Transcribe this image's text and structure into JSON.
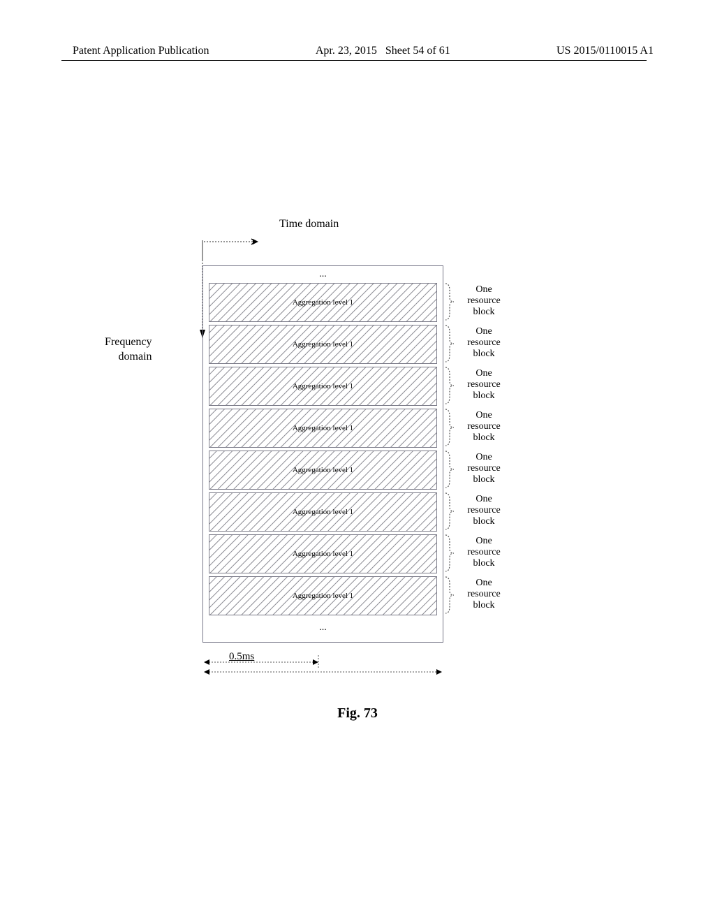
{
  "header": {
    "left": "Patent Application Publication",
    "date": "Apr. 23, 2015",
    "sheet": "Sheet 54 of 61",
    "pubno": "US 2015/0110015 A1"
  },
  "axes": {
    "time_label": "Time domain",
    "freq_label_1": "Frequency",
    "freq_label_2": "domain"
  },
  "diagram": {
    "ellipsis": "...",
    "block_label": "Aggregation level 1",
    "block_count": 8,
    "hatch_color": "#8a8a92",
    "hatch_bg": "#ffffff",
    "border_color": "#7a7a88",
    "frame_fontsize": 11
  },
  "side_label": {
    "line1": "One",
    "line2": "resource",
    "line3": "block"
  },
  "bottom": {
    "ms": "0.5ms"
  },
  "caption": "Fig. 73"
}
